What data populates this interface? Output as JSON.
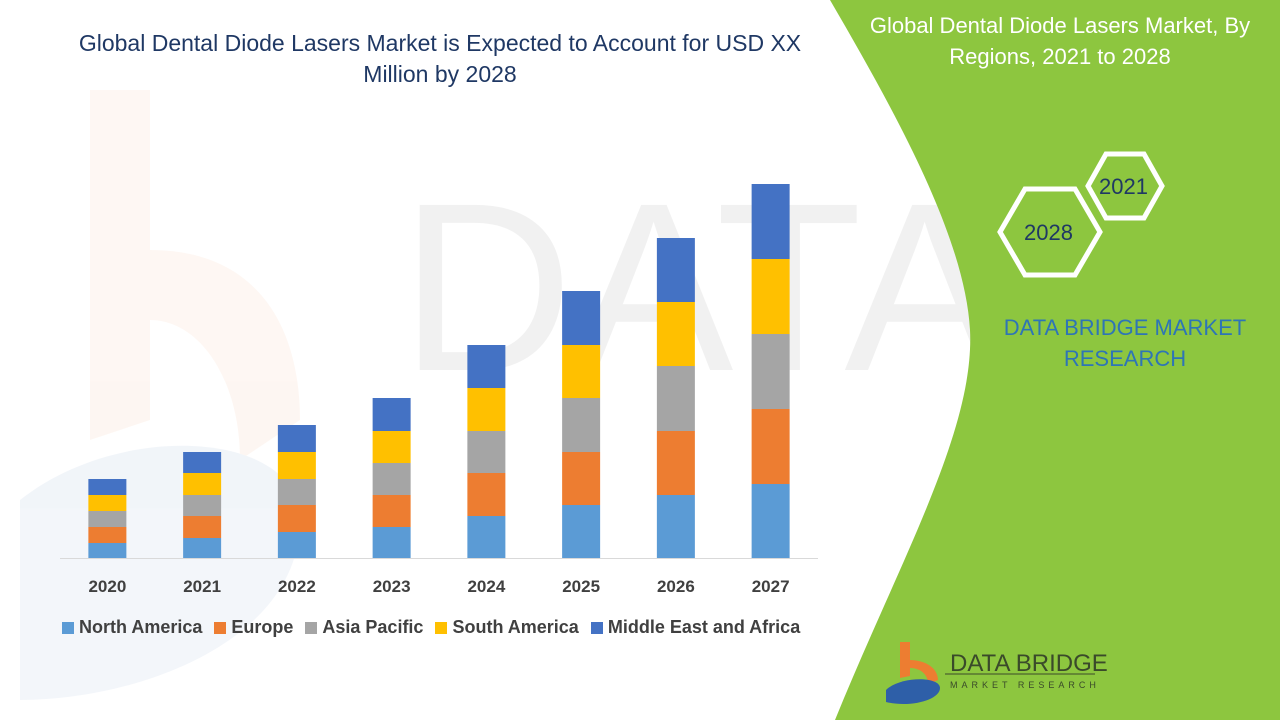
{
  "header": {
    "title": "Global Dental Diode Lasers Market is Expected to Account for USD XX Million by 2028"
  },
  "side_panel": {
    "title": "Global Dental Diode Lasers Market, By Regions, 2021 to 2028",
    "hex_years": [
      "2021",
      "2028"
    ],
    "brand": "DATA BRIDGE MARKET RESEARCH",
    "logo_text": "DATA BRIDGE",
    "logo_subtext": "MARKET RESEARCH",
    "watermark_text": "DATA BRIDGE MARKET RESEARCH",
    "panel_color": "#8dc63f"
  },
  "chart_data": {
    "type": "bar",
    "stacked": true,
    "title": "Global Dental Diode Lasers Market is Expected to Account for USD XX Million by 2028",
    "xlabel": "",
    "ylabel": "",
    "y_axis_shown": false,
    "grid": false,
    "legend_position": "bottom",
    "categories": [
      "2020",
      "2021",
      "2022",
      "2023",
      "2024",
      "2025",
      "2026",
      "2027"
    ],
    "series": [
      {
        "name": "North America",
        "color": "#5b9bd5",
        "values": [
          15,
          20,
          26,
          31,
          42,
          53,
          63,
          74
        ]
      },
      {
        "name": "Europe",
        "color": "#ed7d31",
        "values": [
          16,
          22,
          27,
          32,
          43,
          53,
          64,
          75
        ]
      },
      {
        "name": "Asia Pacific",
        "color": "#a5a5a5",
        "values": [
          16,
          21,
          26,
          32,
          42,
          54,
          65,
          75
        ]
      },
      {
        "name": "South America",
        "color": "#ffc000",
        "values": [
          16,
          22,
          27,
          32,
          43,
          53,
          64,
          75
        ]
      },
      {
        "name": "Middle East and Africa",
        "color": "#4472c4",
        "values": [
          16,
          21,
          27,
          33,
          43,
          54,
          64,
          75
        ]
      }
    ],
    "ylim": [
      0,
      400
    ]
  }
}
